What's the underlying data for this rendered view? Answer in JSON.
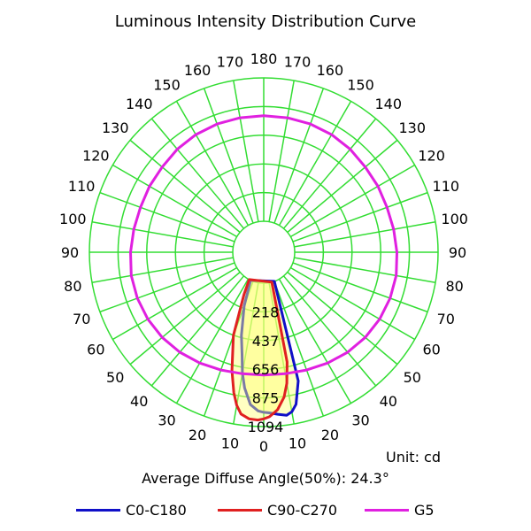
{
  "chart_data": {
    "type": "polar",
    "title": "Luminous Intensity Distribution Curve",
    "unit_text": "Unit: cd",
    "average_angle_text": "Average Diffuse Angle(50%): 24.3°",
    "rings": [
      "218",
      "437",
      "656",
      "875",
      "1094"
    ],
    "ring_max": 1094,
    "angle_labels": [
      "0",
      "10",
      "20",
      "30",
      "40",
      "50",
      "60",
      "70",
      "80",
      "90",
      "100",
      "110",
      "120",
      "130",
      "140",
      "150",
      "160",
      "170",
      "180"
    ],
    "grid_color": "#33dd33",
    "series": [
      {
        "name": "C0-C180",
        "color": "#1010c8",
        "points": [
          [
            -20,
            0
          ],
          [
            -15,
            780
          ],
          [
            -12,
            950
          ],
          [
            -10,
            1000
          ],
          [
            -8,
            1020
          ],
          [
            -5,
            1005
          ],
          [
            -2,
            990
          ],
          [
            0,
            985
          ],
          [
            2,
            975
          ],
          [
            5,
            930
          ],
          [
            8,
            810
          ],
          [
            10,
            700
          ],
          [
            12,
            560
          ],
          [
            15,
            420
          ],
          [
            20,
            200
          ],
          [
            25,
            0
          ]
        ]
      },
      {
        "name": "C90-C270",
        "color": "#e02020",
        "points": [
          [
            -15,
            0
          ],
          [
            -12,
            620
          ],
          [
            -10,
            780
          ],
          [
            -8,
            880
          ],
          [
            -5,
            970
          ],
          [
            -2,
            1020
          ],
          [
            0,
            1035
          ],
          [
            2,
            1045
          ],
          [
            5,
            1040
          ],
          [
            8,
            1010
          ],
          [
            10,
            950
          ],
          [
            12,
            860
          ],
          [
            15,
            700
          ],
          [
            20,
            440
          ],
          [
            25,
            120
          ],
          [
            28,
            0
          ]
        ]
      },
      {
        "name": "G5",
        "color": "#e020e0",
        "points": [
          [
            0,
            700
          ],
          [
            10,
            705
          ],
          [
            20,
            720
          ],
          [
            30,
            740
          ],
          [
            40,
            760
          ],
          [
            50,
            775
          ],
          [
            60,
            785
          ],
          [
            70,
            790
          ],
          [
            80,
            790
          ],
          [
            90,
            780
          ],
          [
            100,
            770
          ],
          [
            110,
            765
          ],
          [
            120,
            770
          ],
          [
            130,
            775
          ],
          [
            140,
            790
          ],
          [
            150,
            800
          ],
          [
            160,
            805
          ],
          [
            170,
            805
          ],
          [
            180,
            805
          ],
          [
            190,
            805
          ],
          [
            200,
            805
          ],
          [
            210,
            800
          ],
          [
            220,
            790
          ],
          [
            230,
            775
          ],
          [
            240,
            770
          ],
          [
            250,
            765
          ],
          [
            260,
            770
          ],
          [
            270,
            780
          ],
          [
            280,
            790
          ],
          [
            290,
            790
          ],
          [
            300,
            785
          ],
          [
            310,
            775
          ],
          [
            320,
            760
          ],
          [
            330,
            740
          ],
          [
            340,
            720
          ],
          [
            350,
            705
          ],
          [
            360,
            700
          ]
        ]
      }
    ]
  }
}
